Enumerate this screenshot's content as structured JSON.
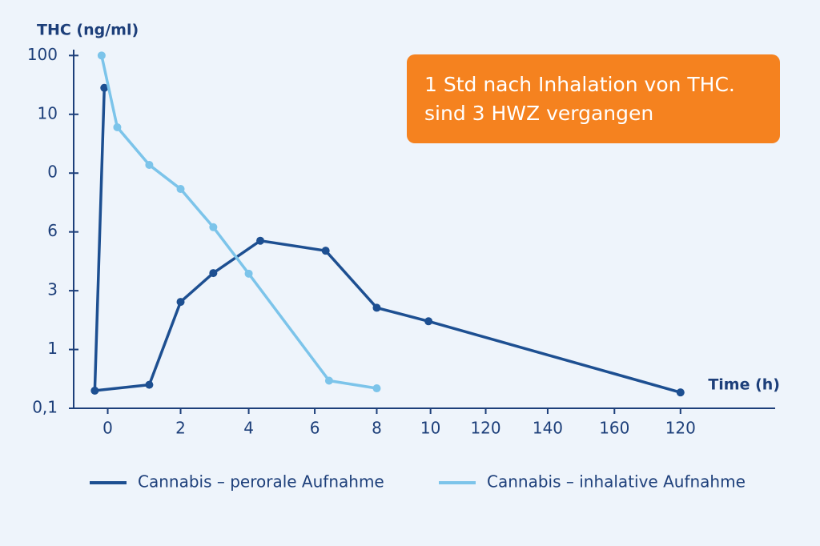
{
  "chart_data": {
    "type": "line",
    "y_label": "THC (ng/ml)",
    "x_label": "Time (h)",
    "annotation": [
      "1 Std nach Inhalation von THC.",
      "sind 3 HWZ vergangen"
    ],
    "xlim": [
      -0.5,
      9.8
    ],
    "ylim": [
      0,
      6.1
    ],
    "xticks": [
      {
        "value": 0,
        "label": "0"
      },
      {
        "value": 1.07,
        "label": "2"
      },
      {
        "value": 2.07,
        "label": "4"
      },
      {
        "value": 3.04,
        "label": "6"
      },
      {
        "value": 3.95,
        "label": "8"
      },
      {
        "value": 4.74,
        "label": "10"
      },
      {
        "value": 5.55,
        "label": "120"
      },
      {
        "value": 6.46,
        "label": "140"
      },
      {
        "value": 7.44,
        "label": "160"
      },
      {
        "value": 8.41,
        "label": "120"
      }
    ],
    "yticks": [
      {
        "value": 0,
        "label": "0,1"
      },
      {
        "value": 1,
        "label": "1"
      },
      {
        "value": 2,
        "label": "3"
      },
      {
        "value": 3,
        "label": "6"
      },
      {
        "value": 4,
        "label": "0"
      },
      {
        "value": 5,
        "label": "10"
      },
      {
        "value": 6,
        "label": "100"
      }
    ],
    "series": [
      {
        "name": "Cannabis – perorale Aufnahme",
        "color": "#1d4f91",
        "x": [
          -0.05,
          -0.19,
          0.61,
          1.07,
          1.55,
          2.24,
          3.2,
          3.95,
          4.71,
          8.41
        ],
        "values": [
          5.45,
          0.3,
          0.4,
          1.81,
          2.3,
          2.85,
          2.68,
          1.71,
          1.48,
          0.27
        ]
      },
      {
        "name": "Cannabis – inhalative Aufnahme",
        "color": "#7cc4ea",
        "x": [
          -0.09,
          0.14,
          0.61,
          1.07,
          1.55,
          2.07,
          3.25,
          3.95
        ],
        "values": [
          6.0,
          4.78,
          4.14,
          3.73,
          3.08,
          2.29,
          0.47,
          0.34
        ]
      }
    ]
  }
}
